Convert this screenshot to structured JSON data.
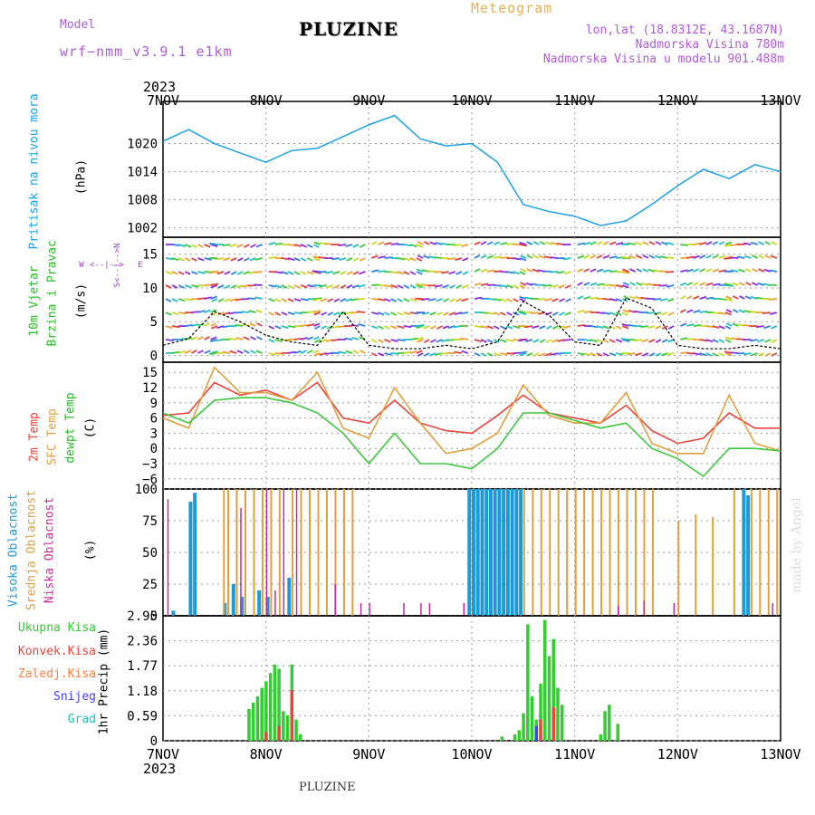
{
  "header": {
    "title": "PLUZINE",
    "model_label": "Model",
    "model_name": "wrf−nmm_v3.9.1 e1km",
    "meteogram": "Meteogram",
    "lonlat": "lon,lat (18.8312E, 43.1687N)",
    "altitude": "Nadmorska Visina 780m",
    "model_altitude": "Nadmorska Visina u modelu 901.488m",
    "footer": "PLUZINE",
    "made_by": "made by Angel"
  },
  "colors": {
    "pressure": "#1ca1e6",
    "temp2m": "#e8453c",
    "sfc": "#e0a040",
    "dewpt": "#3cc83c",
    "wind_purple": "#8a2be2",
    "wind_label": "#2bbb2b",
    "high_cloud": "#1c9ad6",
    "mid_cloud": "#e0a040",
    "low_cloud": "#c02ca0",
    "total_precip": "#33cc33",
    "conv_precip": "#e8453c",
    "frozen_precip": "#ff8040",
    "snow": "#4040ff",
    "hail": "#20c0c0"
  },
  "chart_data": [
    {
      "type": "line",
      "panel": "pressure",
      "ylabel_1": "Pritisak na nivou mora",
      "ylabel_2": "(hPa)",
      "yticks": [
        "1002",
        "1008",
        "1014",
        "1020"
      ],
      "ylim": [
        1000,
        1029
      ],
      "x_hours": [
        0,
        6,
        12,
        18,
        24,
        30,
        36,
        42,
        48,
        54,
        60,
        66,
        72,
        78,
        84,
        90,
        96,
        102,
        108,
        114,
        120,
        126,
        132,
        138,
        144
      ],
      "values": [
        1020.5,
        1023,
        1020,
        1018,
        1016,
        1018.5,
        1019,
        1021.5,
        1024,
        1026,
        1021,
        1019.5,
        1020,
        1016,
        1007,
        1005.5,
        1004.5,
        1002.5,
        1003.5,
        1007,
        1011,
        1014.5,
        1012.5,
        1015.5,
        1014
      ]
    },
    {
      "type": "line",
      "panel": "wind",
      "ylabel_1": "10m Vjetar",
      "ylabel_2": "Brzina i Pravac",
      "ylabel_3": "(m/s)",
      "compass": [
        "W",
        "<--|-->",
        "E",
        "S<--|-->N"
      ],
      "yticks": [
        "0",
        "5",
        "10",
        "15"
      ],
      "ylim": [
        -1,
        17.5
      ],
      "x_hours": [
        0,
        6,
        12,
        18,
        24,
        30,
        36,
        42,
        48,
        54,
        60,
        66,
        72,
        78,
        84,
        90,
        96,
        102,
        108,
        114,
        120,
        126,
        132,
        138,
        144
      ],
      "speed": [
        1.5,
        2.5,
        6.5,
        5,
        3,
        2,
        1.5,
        6.5,
        1.5,
        1,
        1,
        1.5,
        1,
        2,
        8,
        6,
        2,
        1.5,
        8.5,
        7,
        1.5,
        1,
        1,
        1.5,
        1
      ]
    },
    {
      "type": "line",
      "panel": "temperature",
      "ylabel_1": "2m Temp",
      "ylabel_2": "SFC Temp",
      "ylabel_3": "dewpt Temp",
      "ylabel_4": "(C)",
      "yticks": [
        "−6",
        "−3",
        "0",
        "3",
        "6",
        "9",
        "12",
        "15"
      ],
      "ylim": [
        -8,
        17
      ],
      "x_hours": [
        0,
        6,
        12,
        18,
        24,
        30,
        36,
        42,
        48,
        54,
        60,
        66,
        72,
        78,
        84,
        90,
        96,
        102,
        108,
        114,
        120,
        126,
        132,
        138,
        144
      ],
      "series": [
        {
          "name": "2m Temp",
          "values": [
            6.5,
            7,
            13,
            10.5,
            11.5,
            9.5,
            13,
            6,
            5,
            9.5,
            5,
            3.5,
            3,
            6.5,
            10.5,
            7,
            6,
            5,
            8.5,
            3.5,
            1,
            2,
            7,
            4,
            4
          ]
        },
        {
          "name": "SFC Temp",
          "values": [
            6,
            4,
            16,
            11,
            11,
            9.5,
            15,
            4,
            2,
            12,
            5,
            -1,
            0,
            3,
            12.5,
            6.5,
            5,
            5,
            11,
            1,
            -1,
            -1,
            10.5,
            1,
            -0.5
          ]
        },
        {
          "name": "dewpt Temp",
          "values": [
            7,
            5,
            9.5,
            10,
            10,
            9,
            7,
            3,
            -3,
            3,
            -3,
            -3,
            -4,
            0,
            7,
            7,
            5.5,
            4,
            5,
            0,
            -2,
            -5.5,
            0,
            0,
            -0.5
          ]
        }
      ]
    },
    {
      "type": "bar",
      "panel": "clouds",
      "ylabel_1": "Visoka Oblacnost",
      "ylabel_2": "Srednja Oblacnost",
      "ylabel_3": "Niska Oblacnost",
      "ylabel_4": "(%)",
      "yticks": [
        "0",
        "25",
        "50",
        "75",
        "100"
      ],
      "ylim": [
        0,
        100
      ],
      "series": [
        {
          "name": "Visoka Oblacnost",
          "x_hours": [
            2,
            6,
            7,
            14,
            16,
            18,
            22,
            24,
            29,
            71,
            72,
            73,
            74,
            75,
            76,
            77,
            78,
            79,
            80,
            81,
            82,
            83,
            135,
            136
          ],
          "values": [
            4,
            90,
            97,
            10,
            25,
            15,
            20,
            15,
            30,
            100,
            100,
            100,
            100,
            100,
            100,
            100,
            100,
            100,
            100,
            100,
            100,
            100,
            100,
            95
          ]
        },
        {
          "name": "Srednja Oblacnost",
          "x_hours": [
            14,
            15,
            17,
            19,
            21,
            23,
            25,
            27,
            30,
            32,
            34,
            36,
            38,
            40,
            42,
            44,
            84,
            86,
            88,
            90,
            92,
            94,
            96,
            98,
            100,
            102,
            104,
            106,
            108,
            110,
            112,
            114,
            120,
            124,
            128,
            133,
            137,
            139,
            141,
            143
          ],
          "values": [
            100,
            100,
            100,
            100,
            100,
            100,
            100,
            100,
            100,
            100,
            100,
            100,
            100,
            100,
            100,
            100,
            100,
            100,
            100,
            100,
            100,
            100,
            100,
            100,
            100,
            100,
            100,
            100,
            100,
            100,
            100,
            100,
            75,
            80,
            78,
            100,
            100,
            100,
            100,
            100
          ]
        },
        {
          "name": "Niska Oblacnost",
          "x_hours": [
            1,
            18,
            24,
            26,
            28,
            31,
            40,
            46,
            48,
            56,
            60,
            62,
            70,
            106,
            112,
            119,
            142
          ],
          "values": [
            92,
            85,
            100,
            20,
            100,
            100,
            25,
            10,
            10,
            10,
            10,
            10,
            10,
            8,
            12,
            10,
            10
          ]
        }
      ]
    },
    {
      "type": "bar",
      "panel": "precipitation",
      "ylabel": "1hr Precip (mm)",
      "legend": [
        "Ukupna Kisa",
        "Konvek.Kisa",
        "Zaledj.Kisa",
        "Snijeg",
        "Grad"
      ],
      "yticks": [
        "0",
        "0.59",
        "1.18",
        "1.77",
        "2.36",
        "2.95"
      ],
      "ylim": [
        0,
        2.95
      ],
      "series": [
        {
          "name": "Ukupna Kisa",
          "x_hours": [
            20,
            21,
            22,
            23,
            24,
            25,
            26,
            27,
            28,
            29,
            30,
            31,
            32,
            79,
            82,
            83,
            84,
            85,
            86,
            87,
            88,
            89,
            90,
            91,
            92,
            93,
            102,
            103,
            104,
            106
          ],
          "values": [
            0.75,
            0.9,
            1.05,
            1.25,
            1.4,
            1.6,
            1.8,
            1.7,
            0.7,
            0.6,
            1.8,
            0.5,
            0.15,
            0.1,
            0.15,
            0.25,
            0.65,
            2.75,
            1.05,
            0.5,
            1.35,
            2.85,
            2.0,
            2.4,
            1.25,
            0.85,
            0.15,
            0.7,
            0.85,
            0.4
          ]
        },
        {
          "name": "Konvek.Kisa",
          "x_hours": [
            24,
            27,
            30,
            88,
            91
          ],
          "values": [
            0.2,
            0.35,
            1.2,
            0.5,
            0.8
          ]
        },
        {
          "name": "Snijeg",
          "x_hours": [
            87
          ],
          "values": [
            0.35
          ]
        }
      ]
    }
  ],
  "x_axis": {
    "year": "2023",
    "ticks": [
      "7NOV",
      "8NOV",
      "9NOV",
      "10NOV",
      "11NOV",
      "12NOV",
      "13NOV"
    ],
    "xlim_hours": [
      0,
      144
    ]
  }
}
